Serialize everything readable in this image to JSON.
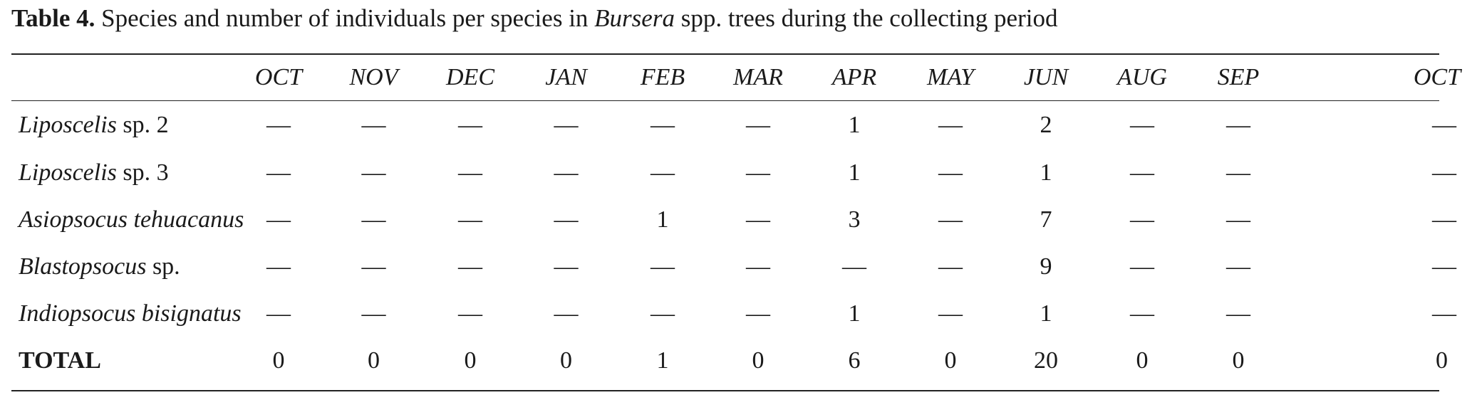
{
  "caption": {
    "label": "Table 4.",
    "text_before": " Species and number of individuals per species in ",
    "genus": "Bursera",
    "text_after": " spp. trees during the collecting period"
  },
  "table": {
    "months": [
      "OCT",
      "NOV",
      "DEC",
      "JAN",
      "FEB",
      "MAR",
      "APR",
      "MAY",
      "JUN",
      "AUG",
      "SEP",
      "OCT"
    ],
    "rows": [
      {
        "name_italic": "Liposcelis",
        "name_plain": " sp. 2",
        "values": [
          "—",
          "—",
          "—",
          "—",
          "—",
          "—",
          "1",
          "—",
          "2",
          "—",
          "—",
          "—"
        ]
      },
      {
        "name_italic": "Liposcelis",
        "name_plain": " sp. 3",
        "values": [
          "—",
          "—",
          "—",
          "—",
          "—",
          "—",
          "1",
          "—",
          "1",
          "—",
          "—",
          "—"
        ]
      },
      {
        "name_italic": "Asiopsocus tehuacanus",
        "name_plain": "",
        "values": [
          "—",
          "—",
          "—",
          "—",
          "1",
          "—",
          "3",
          "—",
          "7",
          "—",
          "—",
          "—"
        ]
      },
      {
        "name_italic": "Blastopsocus",
        "name_plain": " sp.",
        "values": [
          "—",
          "—",
          "—",
          "—",
          "—",
          "—",
          "—",
          "—",
          "9",
          "—",
          "—",
          "—"
        ]
      },
      {
        "name_italic": "Indiopsocus bisignatus",
        "name_plain": "",
        "values": [
          "—",
          "—",
          "—",
          "—",
          "—",
          "—",
          "1",
          "—",
          "1",
          "—",
          "—",
          "—"
        ]
      }
    ],
    "total": {
      "label": "TOTAL",
      "values": [
        "0",
        "0",
        "0",
        "0",
        "1",
        "0",
        "6",
        "0",
        "20",
        "0",
        "0",
        "0"
      ]
    }
  }
}
